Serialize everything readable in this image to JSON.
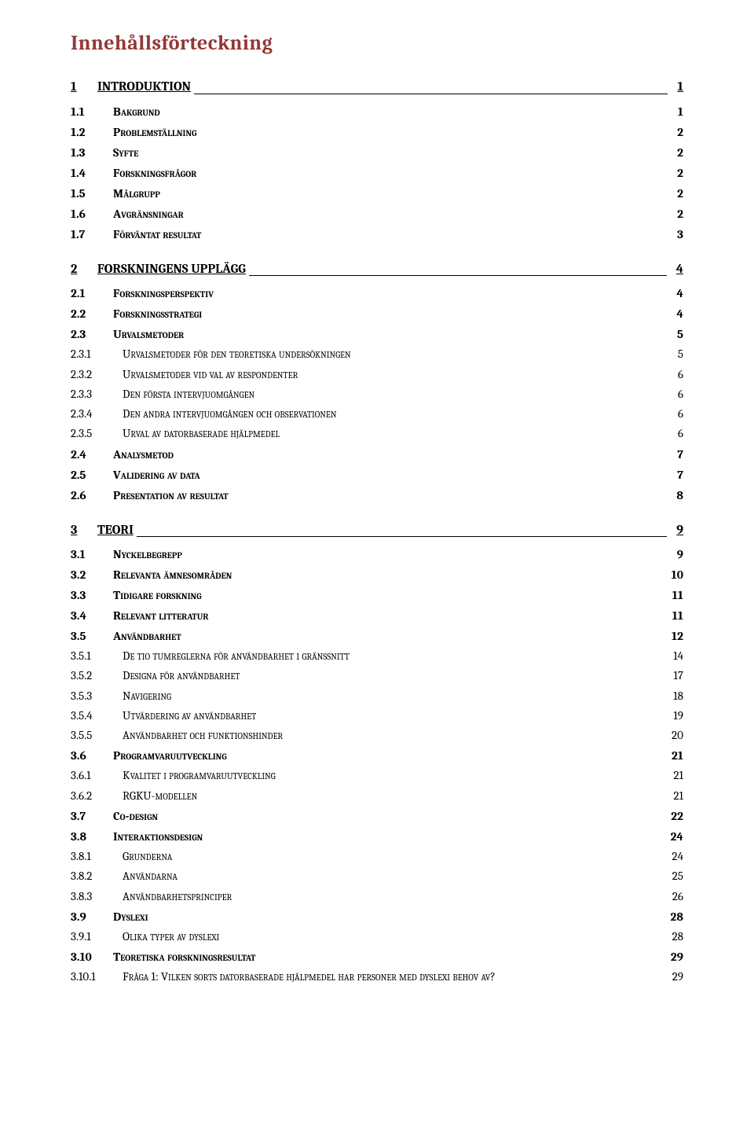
{
  "title": "Innehållsförteckning",
  "colors": {
    "title": "#953735",
    "text": "#000000",
    "background": "#ffffff"
  },
  "typography": {
    "title_fontsize": 26,
    "body_fontsize": 15.5,
    "font_family": "Cambria, Georgia, serif"
  },
  "toc": [
    {
      "level": 1,
      "num": "1",
      "label": "INTRODUKTION",
      "page": "1"
    },
    {
      "level": 2,
      "num": "1.1",
      "label": "Bakgrund",
      "page": "1"
    },
    {
      "level": 2,
      "num": "1.2",
      "label": "Problemställning",
      "page": "2"
    },
    {
      "level": 2,
      "num": "1.3",
      "label": "Syfte",
      "page": "2"
    },
    {
      "level": 2,
      "num": "1.4",
      "label": "Forskningsfrågor",
      "page": "2"
    },
    {
      "level": 2,
      "num": "1.5",
      "label": "Målgrupp",
      "page": "2"
    },
    {
      "level": 2,
      "num": "1.6",
      "label": "Avgränsningar",
      "page": "2"
    },
    {
      "level": 2,
      "num": "1.7",
      "label": "Förväntat resultat",
      "page": "3"
    },
    {
      "level": 1,
      "num": "2",
      "label": "FORSKNINGENS UPPLÄGG",
      "page": "4"
    },
    {
      "level": 2,
      "num": "2.1",
      "label": "Forskningsperspektiv",
      "page": "4"
    },
    {
      "level": 2,
      "num": "2.2",
      "label": "Forskningsstrategi",
      "page": "4"
    },
    {
      "level": 2,
      "num": "2.3",
      "label": "Urvalsmetoder",
      "page": "5"
    },
    {
      "level": 3,
      "num": "2.3.1",
      "label": "Urvalsmetoder för den teoretiska undersökningen",
      "page": "5"
    },
    {
      "level": 3,
      "num": "2.3.2",
      "label": "Urvalsmetoder vid val av respondenter",
      "page": "6"
    },
    {
      "level": 3,
      "num": "2.3.3",
      "label": "Den första intervjuomgången",
      "page": "6"
    },
    {
      "level": 3,
      "num": "2.3.4",
      "label": "Den andra intervjuomgången och observationen",
      "page": "6"
    },
    {
      "level": 3,
      "num": "2.3.5",
      "label": "Urval av datorbaserade hjälpmedel",
      "page": "6"
    },
    {
      "level": 2,
      "num": "2.4",
      "label": "Analysmetod",
      "page": "7"
    },
    {
      "level": 2,
      "num": "2.5",
      "label": "Validering av data",
      "page": "7"
    },
    {
      "level": 2,
      "num": "2.6",
      "label": "Presentation av resultat",
      "page": "8"
    },
    {
      "level": 1,
      "num": "3",
      "label": "TEORI",
      "page": "9"
    },
    {
      "level": 2,
      "num": "3.1",
      "label": "Nyckelbegrepp",
      "page": "9"
    },
    {
      "level": 2,
      "num": "3.2",
      "label": "Relevanta ämnesområden",
      "page": "10"
    },
    {
      "level": 2,
      "num": "3.3",
      "label": "Tidigare forskning",
      "page": "11"
    },
    {
      "level": 2,
      "num": "3.4",
      "label": "Relevant litteratur",
      "page": "11"
    },
    {
      "level": 2,
      "num": "3.5",
      "label": "Användbarhet",
      "page": "12"
    },
    {
      "level": 3,
      "num": "3.5.1",
      "label": "De tio tumreglerna för användbarhet i gränssnitt",
      "page": "14"
    },
    {
      "level": 3,
      "num": "3.5.2",
      "label": "Designa för användbarhet",
      "page": "17"
    },
    {
      "level": 3,
      "num": "3.5.3",
      "label": "Navigering",
      "page": "18"
    },
    {
      "level": 3,
      "num": "3.5.4",
      "label": "Utvärdering av användbarhet",
      "page": "19"
    },
    {
      "level": 3,
      "num": "3.5.5",
      "label": "Användbarhet och funktionshinder",
      "page": "20"
    },
    {
      "level": 2,
      "num": "3.6",
      "label": "Programvaruutveckling",
      "page": "21"
    },
    {
      "level": 3,
      "num": "3.6.1",
      "label": "Kvalitet i programvaruutveckling",
      "page": "21"
    },
    {
      "level": 3,
      "num": "3.6.2",
      "label": "RGKU-modellen",
      "page": "21"
    },
    {
      "level": 2,
      "num": "3.7",
      "label": "Co-design",
      "page": "22"
    },
    {
      "level": 2,
      "num": "3.8",
      "label": "Interaktionsdesign",
      "page": "24"
    },
    {
      "level": 3,
      "num": "3.8.1",
      "label": "Grunderna",
      "page": "24"
    },
    {
      "level": 3,
      "num": "3.8.2",
      "label": "Användarna",
      "page": "25"
    },
    {
      "level": 3,
      "num": "3.8.3",
      "label": "Användbarhetsprinciper",
      "page": "26"
    },
    {
      "level": 2,
      "num": "3.9",
      "label": "Dyslexi",
      "page": "28"
    },
    {
      "level": 3,
      "num": "3.9.1",
      "label": "Olika typer av dyslexi",
      "page": "28"
    },
    {
      "level": 2,
      "num": "3.10",
      "label": "Teoretiska forskningsresultat",
      "page": "29"
    },
    {
      "level": 3,
      "num": "3.10.1",
      "label": "Fråga 1: Vilken sorts datorbaserade hjälpmedel har personer med dyslexi behov av?",
      "page": "29"
    }
  ]
}
